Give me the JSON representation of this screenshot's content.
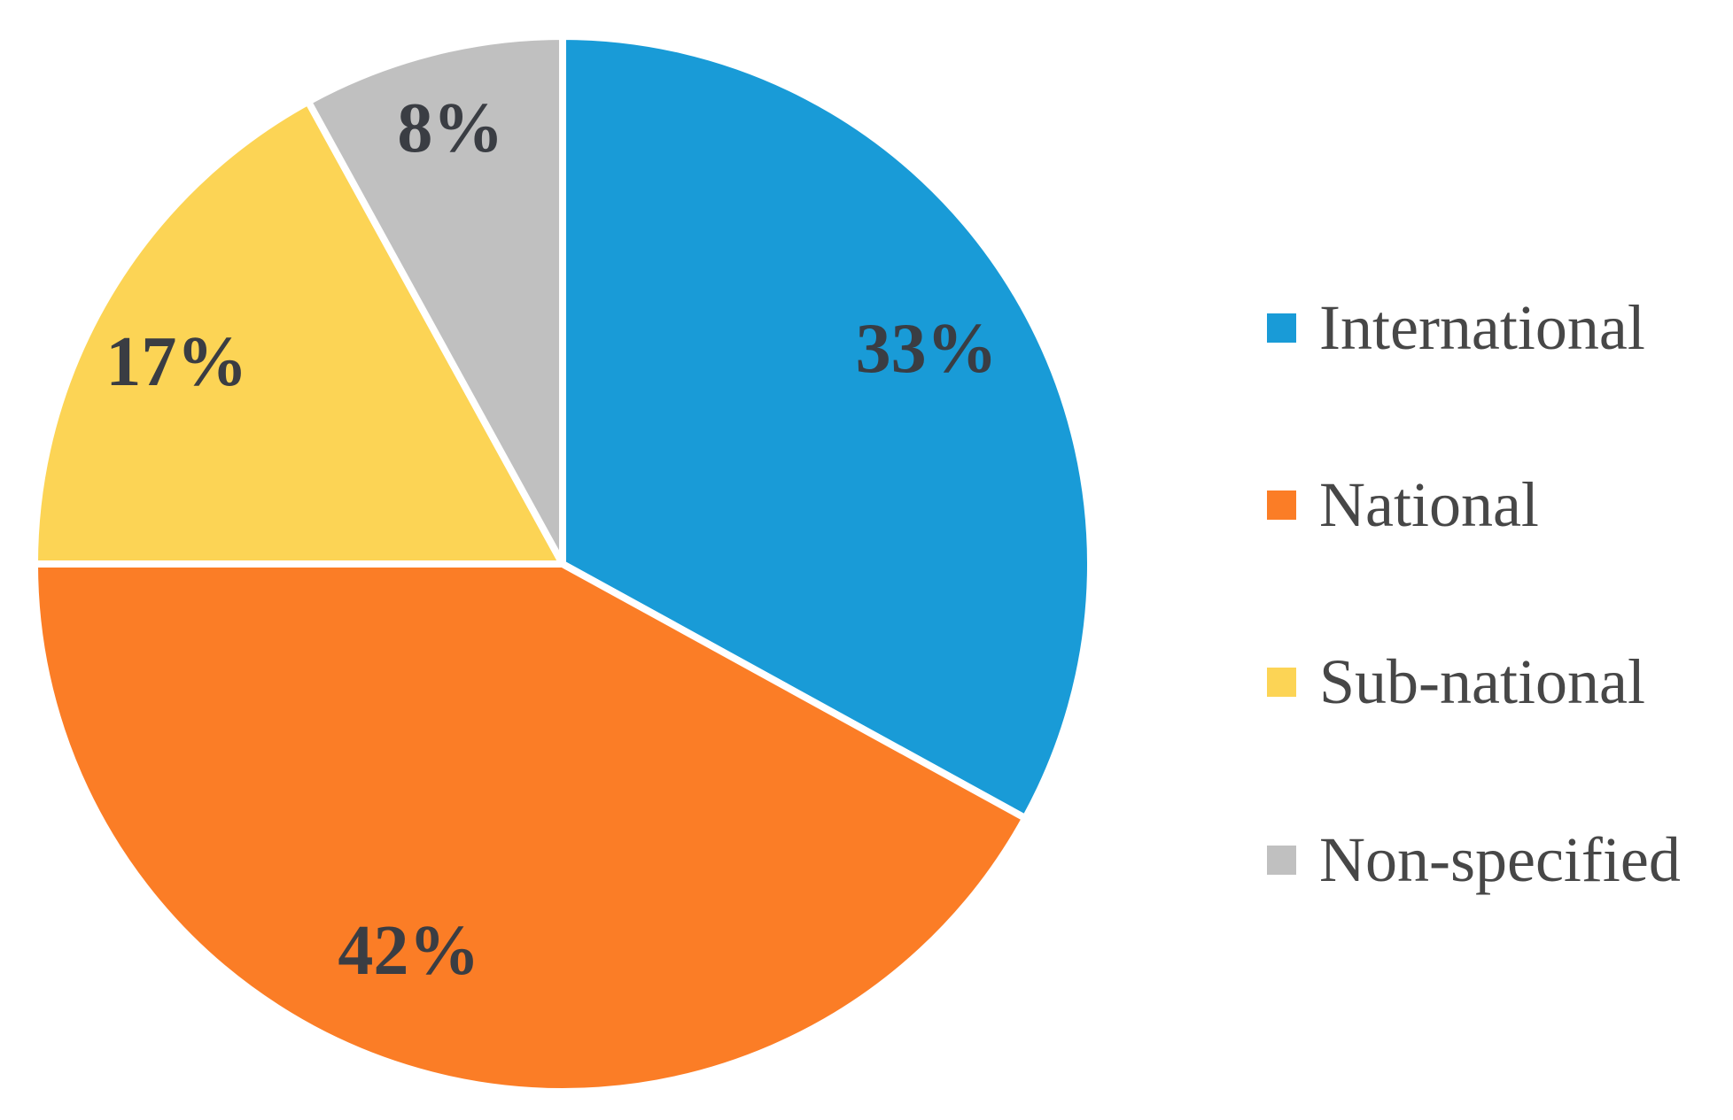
{
  "chart_data": {
    "type": "pie",
    "title": "",
    "legend_position": "right",
    "start_angle_deg": 0,
    "direction": "clockwise",
    "data_label_color": "#3a3d43",
    "legend_text_color": "#474747",
    "slice_border_color": "#ffffff",
    "categories": [
      "International",
      "National",
      "Sub-national",
      "Non-specified"
    ],
    "values": [
      33,
      42,
      17,
      8
    ],
    "slices": [
      {
        "label": "International",
        "value": 33,
        "display": "33%",
        "color": "#199bd7"
      },
      {
        "label": "National",
        "value": 42,
        "display": "42%",
        "color": "#fb7d26"
      },
      {
        "label": "Sub-national",
        "value": 17,
        "display": "17%",
        "color": "#fcd455"
      },
      {
        "label": "Non-specified",
        "value": 8,
        "display": "8%",
        "color": "#c0c0c0"
      }
    ]
  }
}
